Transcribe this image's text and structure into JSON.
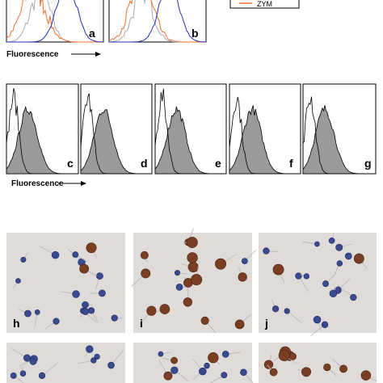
{
  "histogram_row_1": {
    "panels": [
      "a",
      "b"
    ],
    "x_label": "Fluorescence"
  },
  "legend": {
    "entries": [
      "ZYM"
    ]
  },
  "histogram_row_2": {
    "panels": [
      "c",
      "d",
      "e",
      "f",
      "g"
    ],
    "x_label": "Fluorescence"
  },
  "micrographs": {
    "panels": [
      "h",
      "i",
      "j"
    ]
  }
}
